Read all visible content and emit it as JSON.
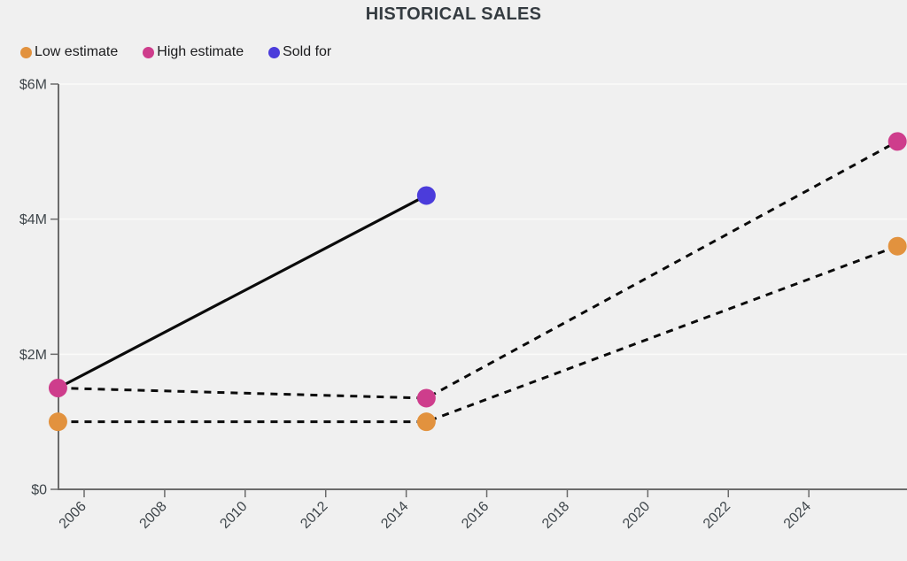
{
  "title": "HISTORICAL SALES",
  "legend": [
    {
      "label": "Low estimate",
      "color": "#E2923E"
    },
    {
      "label": "High estimate",
      "color": "#CE3D8C"
    },
    {
      "label": "Sold for",
      "color": "#4B3CDB"
    }
  ],
  "colors": {
    "background": "#F0F0F0",
    "axis": "#6B6B6B",
    "grid": "#FAFAF9",
    "line": "#0B0B0B",
    "title_text": "#353C41",
    "tick_text": "#3F464B",
    "legend_text": "#1B1B1D",
    "low_estimate": "#E2923E",
    "high_estimate": "#CE3D8C",
    "sold_for": "#4B3CDB"
  },
  "chart_data": {
    "type": "line",
    "title": "HISTORICAL SALES",
    "xlabel": "",
    "ylabel": "",
    "xlim": [
      2005.3,
      2026.3
    ],
    "ylim": [
      0,
      6
    ],
    "grid": true,
    "legend_position": "top-left",
    "y_ticks": [
      {
        "value": 0,
        "label": "$0"
      },
      {
        "value": 2,
        "label": "$2M"
      },
      {
        "value": 4,
        "label": "$4M"
      },
      {
        "value": 6,
        "label": "$6M"
      }
    ],
    "x_ticks": [
      {
        "value": 2006,
        "label": "2006"
      },
      {
        "value": 2008,
        "label": "2008"
      },
      {
        "value": 2010,
        "label": "2010"
      },
      {
        "value": 2012,
        "label": "2012"
      },
      {
        "value": 2014,
        "label": "2014"
      },
      {
        "value": 2016,
        "label": "2016"
      },
      {
        "value": 2018,
        "label": "2018"
      },
      {
        "value": 2020,
        "label": "2020"
      },
      {
        "value": 2022,
        "label": "2022"
      },
      {
        "value": 2024,
        "label": "2024"
      }
    ],
    "series": [
      {
        "name": "Low estimate",
        "slug": "low-estimate",
        "color": "#E2923E",
        "line_style": "dashed",
        "points": [
          {
            "x": 2005.35,
            "y": 1.0
          },
          {
            "x": 2014.5,
            "y": 1.0
          },
          {
            "x": 2026.2,
            "y": 3.6
          }
        ]
      },
      {
        "name": "High estimate",
        "slug": "high-estimate",
        "color": "#CE3D8C",
        "line_style": "dashed",
        "points": [
          {
            "x": 2005.35,
            "y": 1.5
          },
          {
            "x": 2014.5,
            "y": 1.35
          },
          {
            "x": 2026.2,
            "y": 5.15
          }
        ]
      },
      {
        "name": "Sold for",
        "slug": "sold-for",
        "color": "#4B3CDB",
        "line_style": "none",
        "points": [
          {
            "x": 2014.5,
            "y": 4.35
          }
        ]
      }
    ],
    "connectors": [
      {
        "name": "estimate-to-sold",
        "style": "solid",
        "from": {
          "x": 2005.35,
          "y": 1.5
        },
        "to": {
          "x": 2014.5,
          "y": 4.35
        }
      }
    ]
  }
}
